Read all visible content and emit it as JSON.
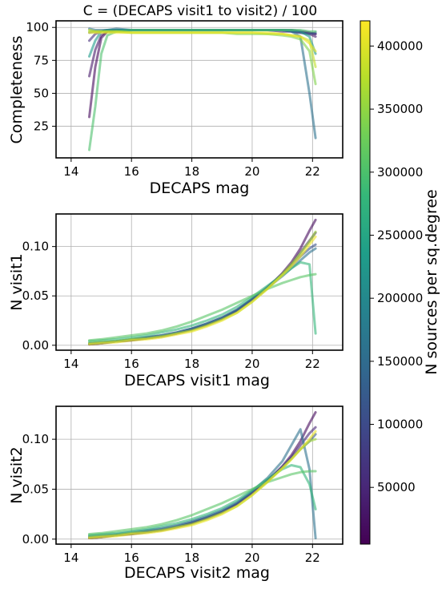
{
  "figure": {
    "colormap": [
      "#440154",
      "#482878",
      "#3e4989",
      "#31688e",
      "#26828e",
      "#1f9e89",
      "#35b779",
      "#6ece58",
      "#b5de2b",
      "#fde725"
    ],
    "colorbar": {
      "label": "N sources per sq.degree",
      "range": [
        5000,
        420000
      ],
      "ticks": [
        50000,
        100000,
        150000,
        200000,
        250000,
        300000,
        350000,
        400000
      ],
      "tick_labels": [
        "50000",
        "100000",
        "150000",
        "200000",
        "250000",
        "300000",
        "350000",
        "400000"
      ]
    }
  },
  "chart_data": [
    {
      "type": "line",
      "title": "C = (DECAPS visit1 to visit2) / 100",
      "xlabel": "DECAPS mag",
      "ylabel": "Completeness",
      "xlim": [
        13.5,
        23.0
      ],
      "ylim": [
        1,
        105
      ],
      "grid": true,
      "xticks": [
        14,
        16,
        18,
        20,
        22
      ],
      "xtick_labels": [
        "14",
        "16",
        "18",
        "20",
        "22"
      ],
      "yticks": [
        25,
        50,
        75,
        100
      ],
      "ytick_labels": [
        "25",
        "50",
        "75",
        "100"
      ],
      "x": [
        14.6,
        14.8,
        15.0,
        15.2,
        15.5,
        16.0,
        16.5,
        17.0,
        17.5,
        18.0,
        18.5,
        19.0,
        19.5,
        20.0,
        20.5,
        21.0,
        21.3,
        21.6,
        21.9,
        22.1
      ],
      "series": [
        {
          "density": 15000,
          "values": [
            32,
            70,
            92,
            97,
            98,
            98,
            98,
            98,
            98,
            98,
            98,
            98,
            98,
            98,
            98,
            98,
            98,
            97,
            96,
            95
          ]
        },
        {
          "density": 35000,
          "values": [
            63,
            83,
            94,
            97,
            97,
            98,
            98,
            98,
            98,
            98,
            98,
            98,
            98,
            98,
            98,
            97,
            97,
            96,
            95,
            93
          ]
        },
        {
          "density": 60000,
          "values": [
            90,
            95,
            97,
            98,
            98,
            98,
            98,
            98,
            98,
            98,
            98,
            98,
            98,
            98,
            98,
            98,
            97,
            97,
            96,
            95
          ]
        },
        {
          "density": 120000,
          "values": [
            96,
            97,
            97,
            98,
            98,
            98,
            98,
            98,
            98,
            98,
            98,
            98,
            98,
            98,
            98,
            98,
            97,
            96,
            95,
            96
          ]
        },
        {
          "density": 160000,
          "values": [
            99,
            98,
            98,
            98,
            99,
            98,
            98,
            98,
            98,
            98,
            98,
            98,
            98,
            98,
            98,
            98,
            97,
            93,
            50,
            16
          ]
        },
        {
          "density": 230000,
          "values": [
            78,
            90,
            97,
            98,
            98,
            98,
            98,
            98,
            98,
            98,
            98,
            98,
            98,
            98,
            98,
            98,
            98,
            97,
            93,
            80
          ]
        },
        {
          "density": 300000,
          "values": [
            7,
            40,
            80,
            94,
            97,
            98,
            98,
            98,
            98,
            98,
            98,
            98,
            98,
            98,
            98,
            98,
            98,
            98,
            97,
            97
          ]
        },
        {
          "density": 340000,
          "values": [
            97,
            97,
            97,
            97,
            97,
            96,
            96,
            96,
            96,
            96,
            96,
            96,
            95,
            95,
            95,
            94,
            93,
            91,
            82,
            57
          ]
        },
        {
          "density": 380000,
          "values": [
            98,
            97,
            97,
            97,
            97,
            96,
            96,
            96,
            96,
            96,
            96,
            96,
            96,
            96,
            95,
            95,
            94,
            93,
            90,
            70
          ]
        },
        {
          "density": 410000,
          "values": [
            96,
            96,
            96,
            96,
            96,
            96,
            96,
            96,
            96,
            96,
            96,
            96,
            96,
            96,
            96,
            95,
            94,
            93,
            88,
            82
          ]
        }
      ]
    },
    {
      "type": "line",
      "title": "",
      "xlabel": "DECAPS visit1 mag",
      "ylabel": "N visit1",
      "xlim": [
        13.5,
        23.0
      ],
      "ylim": [
        -0.005,
        0.133
      ],
      "grid": true,
      "xticks": [
        14,
        16,
        18,
        20,
        22
      ],
      "xtick_labels": [
        "14",
        "16",
        "18",
        "20",
        "22"
      ],
      "yticks": [
        0.0,
        0.05,
        0.1
      ],
      "ytick_labels": [
        "0.00",
        "0.05",
        "0.10"
      ],
      "x": [
        14.6,
        15.0,
        15.5,
        16.0,
        16.5,
        17.0,
        17.5,
        18.0,
        18.5,
        19.0,
        19.5,
        20.0,
        20.5,
        21.0,
        21.3,
        21.6,
        21.9,
        22.1
      ],
      "series": [
        {
          "density": 15000,
          "values": [
            0.001,
            0.002,
            0.004,
            0.005,
            0.007,
            0.009,
            0.012,
            0.016,
            0.021,
            0.027,
            0.035,
            0.046,
            0.058,
            0.073,
            0.084,
            0.098,
            0.116,
            0.127
          ]
        },
        {
          "density": 50000,
          "values": [
            0.001,
            0.002,
            0.004,
            0.005,
            0.007,
            0.009,
            0.012,
            0.016,
            0.021,
            0.027,
            0.035,
            0.046,
            0.058,
            0.072,
            0.082,
            0.094,
            0.106,
            0.114
          ]
        },
        {
          "density": 110000,
          "values": [
            0.002,
            0.003,
            0.004,
            0.006,
            0.008,
            0.01,
            0.013,
            0.017,
            0.022,
            0.028,
            0.036,
            0.047,
            0.059,
            0.072,
            0.081,
            0.09,
            0.098,
            0.102
          ]
        },
        {
          "density": 160000,
          "values": [
            0.002,
            0.003,
            0.004,
            0.006,
            0.008,
            0.01,
            0.013,
            0.017,
            0.022,
            0.028,
            0.036,
            0.047,
            0.058,
            0.07,
            0.078,
            0.086,
            0.094,
            0.098
          ]
        },
        {
          "density": 280000,
          "values": [
            0.004,
            0.005,
            0.006,
            0.008,
            0.01,
            0.013,
            0.016,
            0.02,
            0.025,
            0.031,
            0.039,
            0.049,
            0.06,
            0.071,
            0.078,
            0.084,
            0.082,
            0.012
          ]
        },
        {
          "density": 310000,
          "values": [
            0.005,
            0.006,
            0.008,
            0.01,
            0.012,
            0.015,
            0.019,
            0.024,
            0.03,
            0.036,
            0.043,
            0.05,
            0.057,
            0.063,
            0.066,
            0.069,
            0.071,
            0.072
          ]
        },
        {
          "density": 360000,
          "values": [
            0.002,
            0.003,
            0.004,
            0.006,
            0.007,
            0.009,
            0.012,
            0.015,
            0.02,
            0.026,
            0.033,
            0.044,
            0.057,
            0.072,
            0.082,
            0.093,
            0.105,
            0.115
          ]
        },
        {
          "density": 410000,
          "values": [
            0.001,
            0.002,
            0.003,
            0.005,
            0.006,
            0.008,
            0.011,
            0.014,
            0.019,
            0.025,
            0.033,
            0.044,
            0.057,
            0.071,
            0.08,
            0.09,
            0.102,
            0.11
          ]
        }
      ]
    },
    {
      "type": "line",
      "title": "",
      "xlabel": "DECAPS visit2 mag",
      "ylabel": "N visit2",
      "xlim": [
        13.5,
        23.0
      ],
      "ylim": [
        -0.005,
        0.133
      ],
      "grid": true,
      "xticks": [
        14,
        16,
        18,
        20,
        22
      ],
      "xtick_labels": [
        "14",
        "16",
        "18",
        "20",
        "22"
      ],
      "yticks": [
        0.0,
        0.05,
        0.1
      ],
      "ytick_labels": [
        "0.00",
        "0.05",
        "0.10"
      ],
      "x": [
        14.6,
        15.0,
        15.5,
        16.0,
        16.5,
        17.0,
        17.5,
        18.0,
        18.5,
        19.0,
        19.5,
        20.0,
        20.5,
        21.0,
        21.3,
        21.6,
        21.9,
        22.1
      ],
      "series": [
        {
          "density": 15000,
          "values": [
            0.001,
            0.002,
            0.004,
            0.005,
            0.007,
            0.009,
            0.012,
            0.016,
            0.021,
            0.027,
            0.035,
            0.046,
            0.058,
            0.073,
            0.084,
            0.098,
            0.116,
            0.127
          ]
        },
        {
          "density": 50000,
          "values": [
            0.001,
            0.002,
            0.004,
            0.005,
            0.007,
            0.009,
            0.012,
            0.016,
            0.021,
            0.027,
            0.035,
            0.046,
            0.058,
            0.072,
            0.082,
            0.094,
            0.106,
            0.112
          ]
        },
        {
          "density": 120000,
          "values": [
            0.002,
            0.003,
            0.004,
            0.006,
            0.008,
            0.01,
            0.013,
            0.017,
            0.022,
            0.028,
            0.036,
            0.047,
            0.059,
            0.072,
            0.081,
            0.09,
            0.098,
            0.105
          ]
        },
        {
          "density": 160000,
          "values": [
            0.003,
            0.004,
            0.005,
            0.007,
            0.009,
            0.011,
            0.014,
            0.018,
            0.023,
            0.029,
            0.037,
            0.048,
            0.061,
            0.078,
            0.094,
            0.11,
            0.07,
            0.001
          ]
        },
        {
          "density": 280000,
          "values": [
            0.004,
            0.005,
            0.006,
            0.008,
            0.01,
            0.013,
            0.016,
            0.02,
            0.025,
            0.031,
            0.039,
            0.049,
            0.06,
            0.07,
            0.074,
            0.072,
            0.055,
            0.03
          ]
        },
        {
          "density": 310000,
          "values": [
            0.005,
            0.006,
            0.008,
            0.01,
            0.012,
            0.015,
            0.019,
            0.024,
            0.03,
            0.036,
            0.043,
            0.05,
            0.057,
            0.062,
            0.065,
            0.067,
            0.068,
            0.068
          ]
        },
        {
          "density": 360000,
          "values": [
            0.002,
            0.003,
            0.004,
            0.006,
            0.007,
            0.009,
            0.012,
            0.015,
            0.02,
            0.026,
            0.033,
            0.044,
            0.057,
            0.071,
            0.08,
            0.09,
            0.098,
            0.1
          ]
        },
        {
          "density": 410000,
          "values": [
            0.001,
            0.002,
            0.003,
            0.005,
            0.006,
            0.008,
            0.011,
            0.014,
            0.019,
            0.025,
            0.033,
            0.044,
            0.057,
            0.071,
            0.08,
            0.09,
            0.1,
            0.108
          ]
        }
      ]
    }
  ]
}
